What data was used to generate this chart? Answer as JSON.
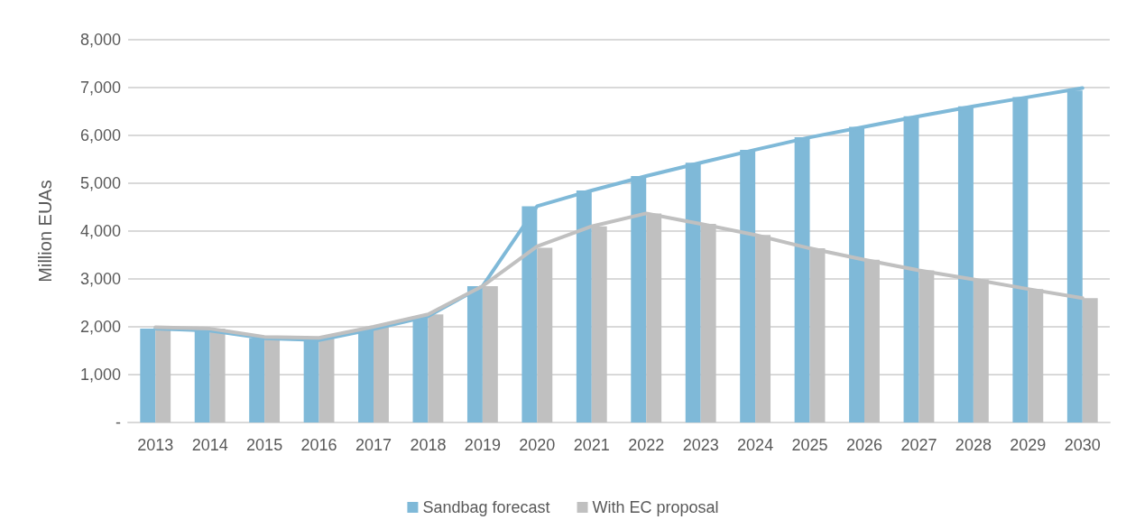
{
  "chart_data": {
    "type": "bar",
    "ylabel": "Million EUAs",
    "categories": [
      "2013",
      "2014",
      "2015",
      "2016",
      "2017",
      "2018",
      "2019",
      "2020",
      "2021",
      "2022",
      "2023",
      "2024",
      "2025",
      "2026",
      "2027",
      "2028",
      "2029",
      "2030"
    ],
    "series": [
      {
        "name": "Sandbag forecast",
        "color": "#7fb9d8",
        "values": [
          1960,
          1920,
          1760,
          1720,
          1950,
          2220,
          2850,
          4520,
          4850,
          5150,
          5430,
          5700,
          5960,
          6180,
          6400,
          6610,
          6800,
          6940
        ]
      },
      {
        "name": "With EC proposal",
        "color": "#c0c0c0",
        "values": [
          1990,
          1960,
          1790,
          1770,
          2000,
          2260,
          2850,
          3650,
          4100,
          4370,
          4150,
          3920,
          3640,
          3400,
          3180,
          2990,
          2790,
          2600
        ]
      },
      {
        "type": "line",
        "color": "#7fb9d8",
        "values": [
          1960,
          1920,
          1760,
          1720,
          1950,
          2220,
          2850,
          4520,
          4850,
          5150,
          5430,
          5700,
          5960,
          6180,
          6400,
          6610,
          6800,
          6990
        ]
      },
      {
        "type": "line",
        "color": "#c0c0c0",
        "values": [
          1990,
          1960,
          1790,
          1770,
          2000,
          2260,
          2850,
          3680,
          4100,
          4370,
          4150,
          3920,
          3640,
          3400,
          3180,
          2990,
          2790,
          2600
        ]
      }
    ],
    "ylim": [
      0,
      8000
    ],
    "yticks": [
      {
        "value": 0,
        "label": "-"
      },
      {
        "value": 1000,
        "label": "1,000"
      },
      {
        "value": 2000,
        "label": "2,000"
      },
      {
        "value": 3000,
        "label": "3,000"
      },
      {
        "value": 4000,
        "label": "4,000"
      },
      {
        "value": 5000,
        "label": "5,000"
      },
      {
        "value": 6000,
        "label": "6,000"
      },
      {
        "value": 7000,
        "label": "7,000"
      },
      {
        "value": 8000,
        "label": "8,000"
      }
    ],
    "grid": "y",
    "legend": "bottom",
    "marker": "none",
    "line_style": "solid"
  }
}
